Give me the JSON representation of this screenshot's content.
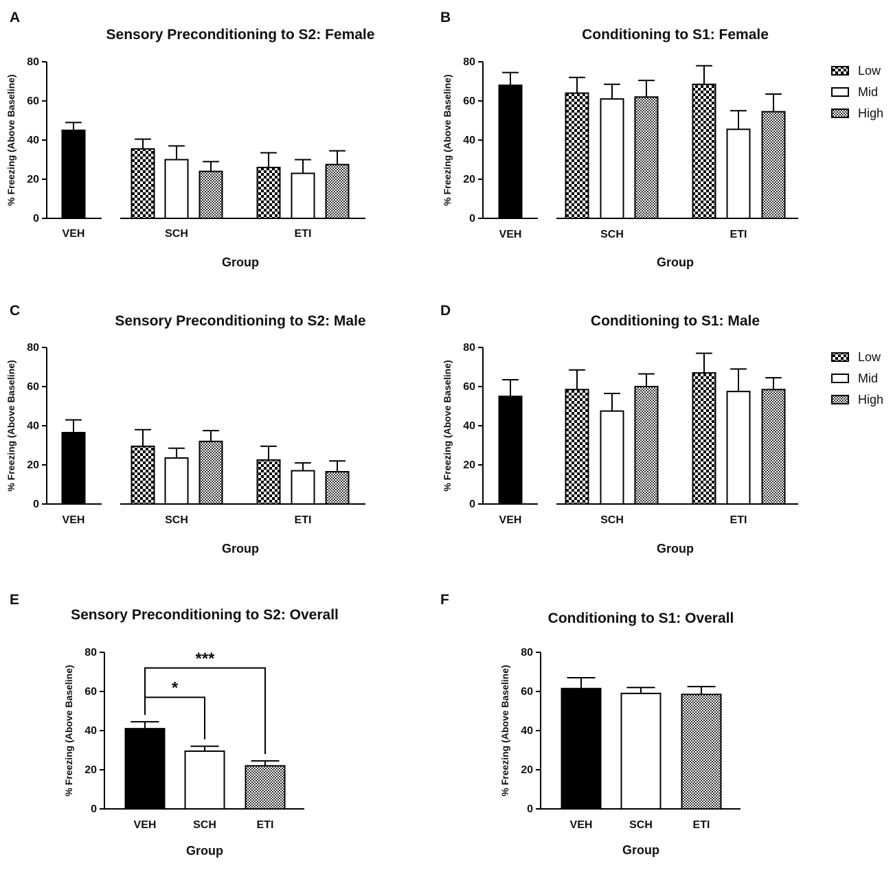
{
  "figure": {
    "legend": [
      {
        "key": "Low",
        "label": "Low"
      },
      {
        "key": "Mid",
        "label": "Mid"
      },
      {
        "key": "High",
        "label": "High"
      }
    ],
    "colors": {
      "bar_stroke": "#000000",
      "text": "#111111",
      "background": "#ffffff"
    }
  },
  "chart_data": [
    {
      "panel": "A",
      "type": "bar",
      "title": "Sensory Preconditioning to S2: Female",
      "xlabel": "Group",
      "ylabel": "% Freezing (Above Baseline)",
      "ylim": [
        0,
        80
      ],
      "yticks": [
        0,
        20,
        40,
        60,
        80
      ],
      "legend": false,
      "groups": [
        {
          "name": "VEH",
          "bars": [
            {
              "level": "VEH",
              "value": 45,
              "error": 4
            }
          ]
        },
        {
          "name": "SCH",
          "bars": [
            {
              "level": "Low",
              "value": 35.5,
              "error": 5
            },
            {
              "level": "Mid",
              "value": 30,
              "error": 7
            },
            {
              "level": "High",
              "value": 24,
              "error": 5
            }
          ]
        },
        {
          "name": "ETI",
          "bars": [
            {
              "level": "Low",
              "value": 26,
              "error": 7.5
            },
            {
              "level": "Mid",
              "value": 23,
              "error": 7
            },
            {
              "level": "High",
              "value": 27.5,
              "error": 7
            }
          ]
        }
      ]
    },
    {
      "panel": "B",
      "type": "bar",
      "title": "Conditioning to S1: Female",
      "xlabel": "Group",
      "ylabel": "% Freezing (Above Baseline)",
      "ylim": [
        0,
        80
      ],
      "yticks": [
        0,
        20,
        40,
        60,
        80
      ],
      "legend": true,
      "groups": [
        {
          "name": "VEH",
          "bars": [
            {
              "level": "VEH",
              "value": 68,
              "error": 6.5
            }
          ]
        },
        {
          "name": "SCH",
          "bars": [
            {
              "level": "Low",
              "value": 64,
              "error": 8
            },
            {
              "level": "Mid",
              "value": 61,
              "error": 7.5
            },
            {
              "level": "High",
              "value": 62,
              "error": 8.5
            }
          ]
        },
        {
          "name": "ETI",
          "bars": [
            {
              "level": "Low",
              "value": 68.5,
              "error": 9.5
            },
            {
              "level": "Mid",
              "value": 45.5,
              "error": 9.5
            },
            {
              "level": "High",
              "value": 54.5,
              "error": 9
            }
          ]
        }
      ]
    },
    {
      "panel": "C",
      "type": "bar",
      "title": "Sensory Preconditioning to S2: Male",
      "xlabel": "Group",
      "ylabel": "% Freezing (Above Baseline)",
      "ylim": [
        0,
        80
      ],
      "yticks": [
        0,
        20,
        40,
        60,
        80
      ],
      "legend": false,
      "groups": [
        {
          "name": "VEH",
          "bars": [
            {
              "level": "VEH",
              "value": 36.5,
              "error": 6.5
            }
          ]
        },
        {
          "name": "SCH",
          "bars": [
            {
              "level": "Low",
              "value": 29.5,
              "error": 8.5
            },
            {
              "level": "Mid",
              "value": 23.5,
              "error": 5
            },
            {
              "level": "High",
              "value": 32,
              "error": 5.5
            }
          ]
        },
        {
          "name": "ETI",
          "bars": [
            {
              "level": "Low",
              "value": 22.5,
              "error": 7
            },
            {
              "level": "Mid",
              "value": 17,
              "error": 4
            },
            {
              "level": "High",
              "value": 16.5,
              "error": 5.5
            }
          ]
        }
      ]
    },
    {
      "panel": "D",
      "type": "bar",
      "title": "Conditioning to S1: Male",
      "xlabel": "Group",
      "ylabel": "% Freezing (Above Baseline)",
      "ylim": [
        0,
        80
      ],
      "yticks": [
        0,
        20,
        40,
        60,
        80
      ],
      "legend": true,
      "groups": [
        {
          "name": "VEH",
          "bars": [
            {
              "level": "VEH",
              "value": 55,
              "error": 8.5
            }
          ]
        },
        {
          "name": "SCH",
          "bars": [
            {
              "level": "Low",
              "value": 58.5,
              "error": 10
            },
            {
              "level": "Mid",
              "value": 47.5,
              "error": 9
            },
            {
              "level": "High",
              "value": 60,
              "error": 6.5
            }
          ]
        },
        {
          "name": "ETI",
          "bars": [
            {
              "level": "Low",
              "value": 67,
              "error": 10
            },
            {
              "level": "Mid",
              "value": 57.5,
              "error": 11.5
            },
            {
              "level": "High",
              "value": 58.5,
              "error": 6
            }
          ]
        }
      ]
    },
    {
      "panel": "E",
      "type": "bar",
      "title": "Sensory Preconditioning to S2: Overall",
      "xlabel": "Group",
      "ylabel": "% Freezing (Above Baseline)",
      "ylim": [
        0,
        80
      ],
      "yticks": [
        0,
        20,
        40,
        60,
        80
      ],
      "legend": false,
      "groups": [
        {
          "name": "VEH",
          "bars": [
            {
              "level": "VEH",
              "value": 41,
              "error": 3.5
            }
          ]
        },
        {
          "name": "SCH",
          "bars": [
            {
              "level": "Mid",
              "value": 29.5,
              "error": 2.5
            }
          ]
        },
        {
          "name": "ETI",
          "bars": [
            {
              "level": "High",
              "value": 22,
              "error": 2.5
            }
          ]
        }
      ],
      "annotations": [
        {
          "from": "VEH",
          "to": "SCH",
          "label": "*",
          "at": 57
        },
        {
          "from": "VEH",
          "to": "ETI",
          "label": "***",
          "at": 72
        }
      ]
    },
    {
      "panel": "F",
      "type": "bar",
      "title": "Conditioning to S1: Overall",
      "xlabel": "Group",
      "ylabel": "% Freezing (Above Baseline)",
      "ylim": [
        0,
        80
      ],
      "yticks": [
        0,
        20,
        40,
        60,
        80
      ],
      "legend": false,
      "groups": [
        {
          "name": "VEH",
          "bars": [
            {
              "level": "VEH",
              "value": 61.5,
              "error": 5.5
            }
          ]
        },
        {
          "name": "SCH",
          "bars": [
            {
              "level": "Mid",
              "value": 59,
              "error": 3
            }
          ]
        },
        {
          "name": "ETI",
          "bars": [
            {
              "level": "High",
              "value": 58.5,
              "error": 4
            }
          ]
        }
      ]
    }
  ]
}
